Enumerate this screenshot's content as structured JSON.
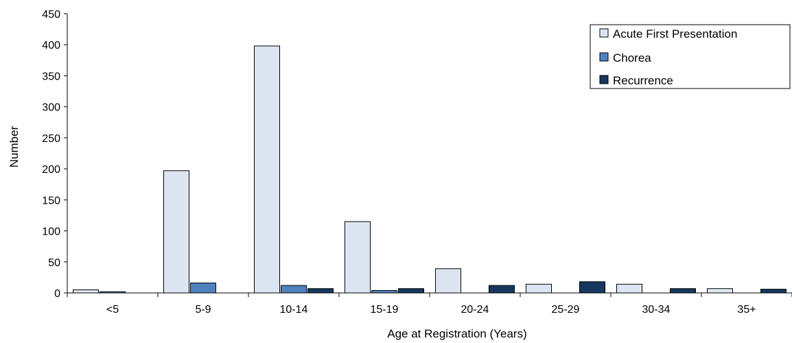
{
  "chart_data": {
    "type": "bar",
    "title": "",
    "xlabel": "Age at Registration (Years)",
    "ylabel": "Number",
    "ylim": [
      0,
      450
    ],
    "yticks": [
      0,
      50,
      100,
      150,
      200,
      250,
      300,
      350,
      400,
      450
    ],
    "grid": false,
    "legend_position": "top-right",
    "categories": [
      "<5",
      "5-9",
      "10-14",
      "15-19",
      "20-24",
      "25-29",
      "30-34",
      "35+"
    ],
    "series": [
      {
        "name": "Acute First Presentation",
        "color": "#dce6f2",
        "values": [
          5,
          197,
          398,
          115,
          39,
          14,
          14,
          7
        ]
      },
      {
        "name": "Chorea",
        "color": "#4f81bd",
        "values": [
          2,
          16,
          12,
          4,
          0,
          0,
          0,
          0
        ]
      },
      {
        "name": "Recurrence",
        "color": "#17375e",
        "values": [
          0,
          0,
          7,
          7,
          12,
          18,
          7,
          6
        ]
      }
    ]
  }
}
